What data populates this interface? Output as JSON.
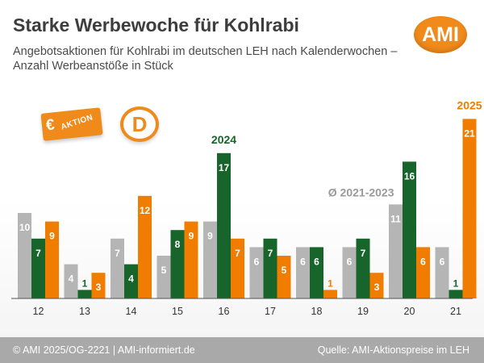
{
  "header": {
    "title": "Starke Werbewoche für Kohlrabi",
    "subtitle": "Angebotsaktionen für Kohlrabi im deutschen LEH nach Kalenderwochen – Anzahl Werbeanstöße in Stück",
    "logo_text": "AMI"
  },
  "decorations": {
    "coupon_euro": "€",
    "coupon_text": "AKTION",
    "badge_letter": "D"
  },
  "footer": {
    "left": "© AMI 2025/OG-2221 | AMI-informiert.de",
    "right": "Quelle: AMI-Aktionspreise im LEH"
  },
  "chart_data": {
    "type": "bar",
    "categories": [
      "12",
      "13",
      "14",
      "15",
      "16",
      "17",
      "18",
      "19",
      "20",
      "21"
    ],
    "series": [
      {
        "name": "Ø 2021-2023",
        "color": "#b5b5b5",
        "values": [
          10,
          4,
          7,
          5,
          9,
          6,
          6,
          6,
          11,
          6
        ]
      },
      {
        "name": "2024",
        "color": "#17652b",
        "values": [
          7,
          1,
          4,
          8,
          17,
          7,
          6,
          7,
          16,
          1
        ]
      },
      {
        "name": "2025",
        "color": "#f07d00",
        "values": [
          9,
          3,
          12,
          9,
          7,
          5,
          1,
          3,
          6,
          21
        ]
      }
    ],
    "ylim": [
      0,
      22
    ],
    "grid": false,
    "legend": "inline labels"
  }
}
